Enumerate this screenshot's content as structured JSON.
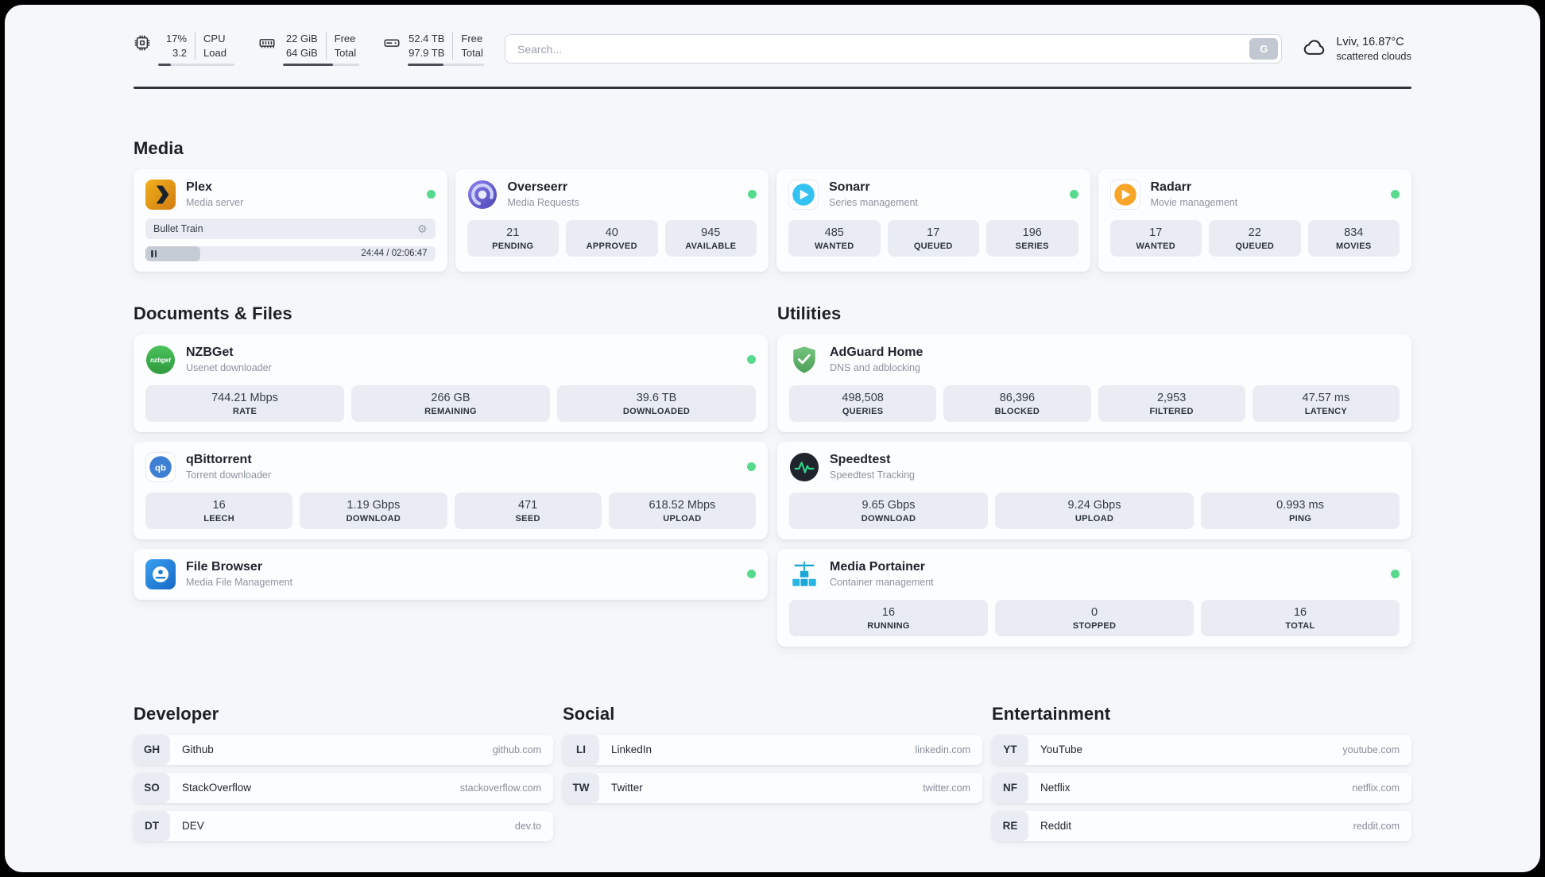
{
  "header": {
    "cpu": {
      "percent": "17%",
      "load": "3.2",
      "label1": "CPU",
      "label2": "Load",
      "progress": 17
    },
    "memory": {
      "free": "22 GiB",
      "total": "64 GiB",
      "label1": "Free",
      "label2": "Total",
      "progress": 66
    },
    "disk": {
      "free": "52.4 TB",
      "total": "97.9 TB",
      "label1": "Free",
      "label2": "Total",
      "progress": 47
    },
    "search": {
      "placeholder": "Search...",
      "engine_button": "G"
    },
    "weather": {
      "location": "Lviv, 16.87°C",
      "condition": "scattered clouds"
    }
  },
  "sections": {
    "media": {
      "title": "Media",
      "plex": {
        "name": "Plex",
        "subtitle": "Media server",
        "now_playing": "Bullet Train",
        "time": "24:44 / 02:06:47",
        "progress": 19
      },
      "overseerr": {
        "name": "Overseerr",
        "subtitle": "Media Requests",
        "stats": [
          {
            "value": "21",
            "label": "PENDING"
          },
          {
            "value": "40",
            "label": "APPROVED"
          },
          {
            "value": "945",
            "label": "AVAILABLE"
          }
        ]
      },
      "sonarr": {
        "name": "Sonarr",
        "subtitle": "Series management",
        "stats": [
          {
            "value": "485",
            "label": "WANTED"
          },
          {
            "value": "17",
            "label": "QUEUED"
          },
          {
            "value": "196",
            "label": "SERIES"
          }
        ]
      },
      "radarr": {
        "name": "Radarr",
        "subtitle": "Movie management",
        "stats": [
          {
            "value": "17",
            "label": "WANTED"
          },
          {
            "value": "22",
            "label": "QUEUED"
          },
          {
            "value": "834",
            "label": "MOVIES"
          }
        ]
      }
    },
    "documents": {
      "title": "Documents & Files",
      "nzbget": {
        "name": "NZBGet",
        "subtitle": "Usenet downloader",
        "stats": [
          {
            "value": "744.21 Mbps",
            "label": "RATE"
          },
          {
            "value": "266 GB",
            "label": "REMAINING"
          },
          {
            "value": "39.6 TB",
            "label": "DOWNLOADED"
          }
        ]
      },
      "qbittorrent": {
        "name": "qBittorrent",
        "subtitle": "Torrent downloader",
        "stats": [
          {
            "value": "16",
            "label": "LEECH"
          },
          {
            "value": "1.19 Gbps",
            "label": "DOWNLOAD"
          },
          {
            "value": "471",
            "label": "SEED"
          },
          {
            "value": "618.52 Mbps",
            "label": "UPLOAD"
          }
        ]
      },
      "filebrowser": {
        "name": "File Browser",
        "subtitle": "Media File Management"
      }
    },
    "utilities": {
      "title": "Utilities",
      "adguard": {
        "name": "AdGuard Home",
        "subtitle": "DNS and adblocking",
        "stats": [
          {
            "value": "498,508",
            "label": "QUERIES"
          },
          {
            "value": "86,396",
            "label": "BLOCKED"
          },
          {
            "value": "2,953",
            "label": "FILTERED"
          },
          {
            "value": "47.57 ms",
            "label": "LATENCY"
          }
        ]
      },
      "speedtest": {
        "name": "Speedtest",
        "subtitle": "Speedtest Tracking",
        "stats": [
          {
            "value": "9.65 Gbps",
            "label": "DOWNLOAD"
          },
          {
            "value": "9.24 Gbps",
            "label": "UPLOAD"
          },
          {
            "value": "0.993 ms",
            "label": "PING"
          }
        ]
      },
      "portainer": {
        "name": "Media Portainer",
        "subtitle": "Container management",
        "stats": [
          {
            "value": "16",
            "label": "RUNNING"
          },
          {
            "value": "0",
            "label": "STOPPED"
          },
          {
            "value": "16",
            "label": "TOTAL"
          }
        ]
      }
    }
  },
  "bookmarks": {
    "developer": {
      "title": "Developer",
      "items": [
        {
          "abbr": "GH",
          "name": "Github",
          "url": "github.com"
        },
        {
          "abbr": "SO",
          "name": "StackOverflow",
          "url": "stackoverflow.com"
        },
        {
          "abbr": "DT",
          "name": "DEV",
          "url": "dev.to"
        }
      ]
    },
    "social": {
      "title": "Social",
      "items": [
        {
          "abbr": "LI",
          "name": "LinkedIn",
          "url": "linkedin.com"
        },
        {
          "abbr": "TW",
          "name": "Twitter",
          "url": "twitter.com"
        }
      ]
    },
    "entertainment": {
      "title": "Entertainment",
      "items": [
        {
          "abbr": "YT",
          "name": "YouTube",
          "url": "youtube.com"
        },
        {
          "abbr": "NF",
          "name": "Netflix",
          "url": "netflix.com"
        },
        {
          "abbr": "RE",
          "name": "Reddit",
          "url": "reddit.com"
        }
      ]
    }
  },
  "icons": {
    "gear": "⚙",
    "nzbget_text": "nzbget",
    "qb_text": "qb"
  },
  "colors": {
    "status_green": "#57d98e",
    "page_bg": "#f5f7fa",
    "stat_bg": "#e9edf3"
  }
}
